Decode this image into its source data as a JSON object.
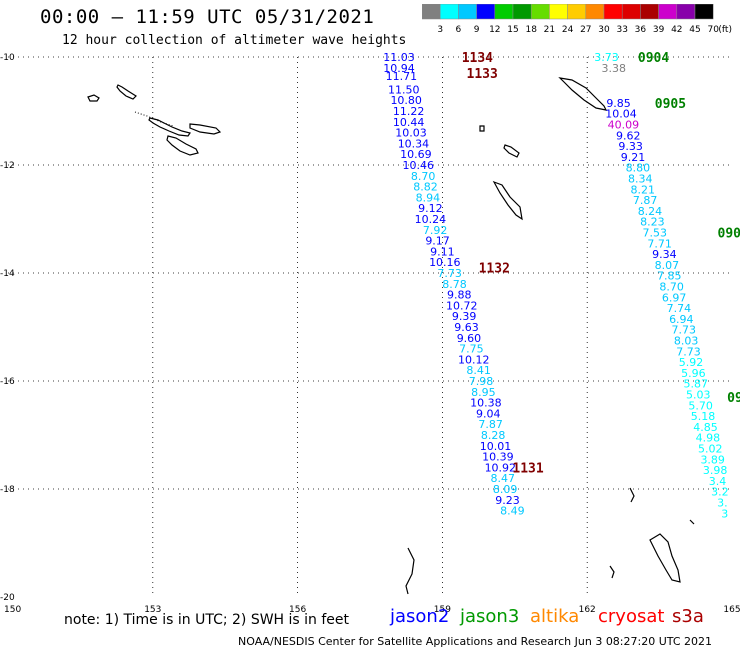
{
  "header": {
    "title": "00:00 – 11:59 UTC 05/31/2021",
    "subtitle": "12 hour collection of altimeter wave heights"
  },
  "legend": {
    "unit": "(ft)",
    "bins": [
      {
        "label": "3",
        "color": "#808080"
      },
      {
        "label": "6",
        "color": "#00ffff"
      },
      {
        "label": "9",
        "color": "#00c8ff"
      },
      {
        "label": "12",
        "color": "#0000ff"
      },
      {
        "label": "15",
        "color": "#00cc00"
      },
      {
        "label": "18",
        "color": "#009900"
      },
      {
        "label": "21",
        "color": "#66dd00"
      },
      {
        "label": "24",
        "color": "#ffff00"
      },
      {
        "label": "27",
        "color": "#ffcc00"
      },
      {
        "label": "30",
        "color": "#ff8800"
      },
      {
        "label": "33",
        "color": "#ff0000"
      },
      {
        "label": "36",
        "color": "#dd0000"
      },
      {
        "label": "39",
        "color": "#aa0000"
      },
      {
        "label": "42",
        "color": "#cc00cc"
      },
      {
        "label": "45",
        "color": "#8800aa"
      },
      {
        "label": "70",
        "color": "#000000"
      }
    ]
  },
  "map": {
    "lon_ticks": [
      "150",
      "153",
      "156",
      "159",
      "162",
      "165"
    ],
    "lat_ticks": [
      "-10",
      "-12",
      "-14",
      "-16",
      "-18",
      "-20"
    ],
    "pass_times": [
      {
        "label": "1134",
        "lon": 159.4,
        "lat": -10.0,
        "color": "#800000"
      },
      {
        "label": "1133",
        "lon": 159.5,
        "lat": -10.3,
        "color": "#800000"
      },
      {
        "label": "1132",
        "lon": 159.75,
        "lat": -13.9,
        "color": "#800000"
      },
      {
        "label": "1131",
        "lon": 160.45,
        "lat": -17.6,
        "color": "#800000"
      },
      {
        "label": "0904",
        "lon": 163.05,
        "lat": -10.0,
        "color": "#008000"
      },
      {
        "label": "0905",
        "lon": 163.4,
        "lat": -10.85,
        "color": "#008000"
      },
      {
        "label": "0906",
        "lon": 164.7,
        "lat": -13.25,
        "color": "#008000"
      },
      {
        "label": "09",
        "lon": 164.9,
        "lat": -16.3,
        "color": "#008000"
      }
    ],
    "track_west": [
      {
        "v": "11.03",
        "lon": 158.1,
        "lat": -10.0,
        "c": "#0000ff"
      },
      {
        "v": "10.94",
        "lon": 158.1,
        "lat": -10.2,
        "c": "#0000ff"
      },
      {
        "v": "11.71",
        "lon": 158.15,
        "lat": -10.35,
        "c": "#0000ff"
      },
      {
        "v": "11.50",
        "lon": 158.2,
        "lat": -10.6,
        "c": "#0000ff"
      },
      {
        "v": "10.80",
        "lon": 158.25,
        "lat": -10.8,
        "c": "#0000ff"
      },
      {
        "v": "11.22",
        "lon": 158.3,
        "lat": -11.0,
        "c": "#0000ff"
      },
      {
        "v": "10.44",
        "lon": 158.3,
        "lat": -11.2,
        "c": "#0000ff"
      },
      {
        "v": "10.03",
        "lon": 158.35,
        "lat": -11.4,
        "c": "#0000ff"
      },
      {
        "v": "10.34",
        "lon": 158.4,
        "lat": -11.6,
        "c": "#0000ff"
      },
      {
        "v": "10.69",
        "lon": 158.45,
        "lat": -11.8,
        "c": "#0000ff"
      },
      {
        "v": "10.46",
        "lon": 158.5,
        "lat": -12.0,
        "c": "#0000ff"
      },
      {
        "v": "8.70",
        "lon": 158.6,
        "lat": -12.2,
        "c": "#00c8ff"
      },
      {
        "v": "8.82",
        "lon": 158.65,
        "lat": -12.4,
        "c": "#00c8ff"
      },
      {
        "v": "8.94",
        "lon": 158.7,
        "lat": -12.6,
        "c": "#00c8ff"
      },
      {
        "v": "9.12",
        "lon": 158.75,
        "lat": -12.8,
        "c": "#0000ff"
      },
      {
        "v": "10.24",
        "lon": 158.75,
        "lat": -13.0,
        "c": "#0000ff"
      },
      {
        "v": "7.92",
        "lon": 158.85,
        "lat": -13.2,
        "c": "#00c8ff"
      },
      {
        "v": "9.17",
        "lon": 158.9,
        "lat": -13.4,
        "c": "#0000ff"
      },
      {
        "v": "9.11",
        "lon": 159.0,
        "lat": -13.6,
        "c": "#0000ff"
      },
      {
        "v": "10.16",
        "lon": 159.05,
        "lat": -13.8,
        "c": "#0000ff"
      },
      {
        "v": "7.73",
        "lon": 159.15,
        "lat": -14.0,
        "c": "#00c8ff"
      },
      {
        "v": "8.78",
        "lon": 159.25,
        "lat": -14.2,
        "c": "#00c8ff"
      },
      {
        "v": "9.88",
        "lon": 159.35,
        "lat": -14.4,
        "c": "#0000ff"
      },
      {
        "v": "10.72",
        "lon": 159.4,
        "lat": -14.6,
        "c": "#0000ff"
      },
      {
        "v": "9.39",
        "lon": 159.45,
        "lat": -14.8,
        "c": "#0000ff"
      },
      {
        "v": "9.63",
        "lon": 159.5,
        "lat": -15.0,
        "c": "#0000ff"
      },
      {
        "v": "9.60",
        "lon": 159.55,
        "lat": -15.2,
        "c": "#0000ff"
      },
      {
        "v": "7.75",
        "lon": 159.6,
        "lat": -15.4,
        "c": "#00c8ff"
      },
      {
        "v": "10.12",
        "lon": 159.65,
        "lat": -15.6,
        "c": "#0000ff"
      },
      {
        "v": "8.41",
        "lon": 159.75,
        "lat": -15.8,
        "c": "#00c8ff"
      },
      {
        "v": "7.98",
        "lon": 159.8,
        "lat": -16.0,
        "c": "#00c8ff"
      },
      {
        "v": "8.95",
        "lon": 159.85,
        "lat": -16.2,
        "c": "#00c8ff"
      },
      {
        "v": "10.38",
        "lon": 159.9,
        "lat": -16.4,
        "c": "#0000ff"
      },
      {
        "v": "9.04",
        "lon": 159.95,
        "lat": -16.6,
        "c": "#0000ff"
      },
      {
        "v": "7.87",
        "lon": 160.0,
        "lat": -16.8,
        "c": "#00c8ff"
      },
      {
        "v": "8.28",
        "lon": 160.05,
        "lat": -17.0,
        "c": "#00c8ff"
      },
      {
        "v": "10.01",
        "lon": 160.1,
        "lat": -17.2,
        "c": "#0000ff"
      },
      {
        "v": "10.39",
        "lon": 160.15,
        "lat": -17.4,
        "c": "#0000ff"
      },
      {
        "v": "10.92",
        "lon": 160.2,
        "lat": -17.6,
        "c": "#0000ff"
      },
      {
        "v": "8.47",
        "lon": 160.25,
        "lat": -17.8,
        "c": "#00c8ff"
      },
      {
        "v": "8.09",
        "lon": 160.3,
        "lat": -18.0,
        "c": "#00c8ff"
      },
      {
        "v": "9.23",
        "lon": 160.35,
        "lat": -18.2,
        "c": "#0000ff"
      },
      {
        "v": "8.49",
        "lon": 160.45,
        "lat": -18.4,
        "c": "#00c8ff"
      }
    ],
    "track_east": [
      {
        "v": "3.73",
        "lon": 162.4,
        "lat": -10.0,
        "c": "#00ffff"
      },
      {
        "v": "3.38",
        "lon": 162.55,
        "lat": -10.2,
        "c": "#808080"
      },
      {
        "v": "9.85",
        "lon": 162.65,
        "lat": -10.85,
        "c": "#0000ff"
      },
      {
        "v": "10.04",
        "lon": 162.7,
        "lat": -11.05,
        "c": "#0000ff"
      },
      {
        "v": "40.09",
        "lon": 162.75,
        "lat": -11.25,
        "c": "#cc00cc"
      },
      {
        "v": "9.62",
        "lon": 162.85,
        "lat": -11.45,
        "c": "#0000ff"
      },
      {
        "v": "9.33",
        "lon": 162.9,
        "lat": -11.65,
        "c": "#0000ff"
      },
      {
        "v": "9.21",
        "lon": 162.95,
        "lat": -11.85,
        "c": "#0000ff"
      },
      {
        "v": "8.80",
        "lon": 163.05,
        "lat": -12.05,
        "c": "#00c8ff"
      },
      {
        "v": "8.34",
        "lon": 163.1,
        "lat": -12.25,
        "c": "#00c8ff"
      },
      {
        "v": "8.21",
        "lon": 163.15,
        "lat": -12.45,
        "c": "#00c8ff"
      },
      {
        "v": "7.87",
        "lon": 163.2,
        "lat": -12.65,
        "c": "#00c8ff"
      },
      {
        "v": "8.24",
        "lon": 163.3,
        "lat": -12.85,
        "c": "#00c8ff"
      },
      {
        "v": "8.23",
        "lon": 163.35,
        "lat": -13.05,
        "c": "#00c8ff"
      },
      {
        "v": "7.53",
        "lon": 163.4,
        "lat": -13.25,
        "c": "#00c8ff"
      },
      {
        "v": "7.71",
        "lon": 163.5,
        "lat": -13.45,
        "c": "#00c8ff"
      },
      {
        "v": "9.34",
        "lon": 163.6,
        "lat": -13.65,
        "c": "#0000ff"
      },
      {
        "v": "8.07",
        "lon": 163.65,
        "lat": -13.85,
        "c": "#00c8ff"
      },
      {
        "v": "7.85",
        "lon": 163.7,
        "lat": -14.05,
        "c": "#00c8ff"
      },
      {
        "v": "8.70",
        "lon": 163.75,
        "lat": -14.25,
        "c": "#00c8ff"
      },
      {
        "v": "6.97",
        "lon": 163.8,
        "lat": -14.45,
        "c": "#00c8ff"
      },
      {
        "v": "7.74",
        "lon": 163.9,
        "lat": -14.65,
        "c": "#00c8ff"
      },
      {
        "v": "6.94",
        "lon": 163.95,
        "lat": -14.85,
        "c": "#00c8ff"
      },
      {
        "v": "7.73",
        "lon": 164.0,
        "lat": -15.05,
        "c": "#00c8ff"
      },
      {
        "v": "8.03",
        "lon": 164.05,
        "lat": -15.25,
        "c": "#00c8ff"
      },
      {
        "v": "7.73",
        "lon": 164.1,
        "lat": -15.45,
        "c": "#00c8ff"
      },
      {
        "v": "5.92",
        "lon": 164.15,
        "lat": -15.65,
        "c": "#00ffff"
      },
      {
        "v": "5.96",
        "lon": 164.2,
        "lat": -15.85,
        "c": "#00ffff"
      },
      {
        "v": "5.87",
        "lon": 164.25,
        "lat": -16.05,
        "c": "#00ffff"
      },
      {
        "v": "5.03",
        "lon": 164.3,
        "lat": -16.25,
        "c": "#00ffff"
      },
      {
        "v": "5.70",
        "lon": 164.35,
        "lat": -16.45,
        "c": "#00ffff"
      },
      {
        "v": "5.18",
        "lon": 164.4,
        "lat": -16.65,
        "c": "#00ffff"
      },
      {
        "v": "4.85",
        "lon": 164.45,
        "lat": -16.85,
        "c": "#00ffff"
      },
      {
        "v": "4.98",
        "lon": 164.5,
        "lat": -17.05,
        "c": "#00ffff"
      },
      {
        "v": "5.02",
        "lon": 164.55,
        "lat": -17.25,
        "c": "#00ffff"
      },
      {
        "v": "3.89",
        "lon": 164.6,
        "lat": -17.45,
        "c": "#00ffff"
      },
      {
        "v": "3.98",
        "lon": 164.65,
        "lat": -17.65,
        "c": "#00ffff"
      },
      {
        "v": "3.4",
        "lon": 164.7,
        "lat": -17.85,
        "c": "#00ffff"
      },
      {
        "v": "3.2",
        "lon": 164.75,
        "lat": -18.05,
        "c": "#00ffff"
      },
      {
        "v": "3.",
        "lon": 164.8,
        "lat": -18.25,
        "c": "#00ffff"
      },
      {
        "v": "3",
        "lon": 164.85,
        "lat": -18.45,
        "c": "#00ffff"
      }
    ]
  },
  "footer": {
    "note": "note:  1) Time is in UTC;  2) SWH is in feet",
    "satellites": [
      {
        "name": "jason2",
        "color": "#0000ff"
      },
      {
        "name": "jason3",
        "color": "#009900"
      },
      {
        "name": "altika",
        "color": "#ff8800"
      },
      {
        "name": "cryosat",
        "color": "#ff0000"
      },
      {
        "name": "s3a",
        "color": "#aa0000"
      }
    ],
    "credit": "NOAA/NESDIS Center for Satellite Applications and Research    Jun  3 08:27:20 UTC 2021"
  }
}
